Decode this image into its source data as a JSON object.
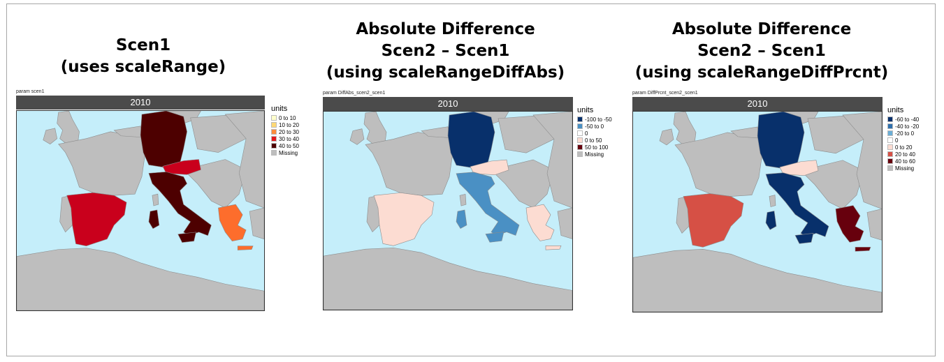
{
  "panels": [
    {
      "id": "scen1",
      "title_lines": [
        "Scen1",
        "(uses scaleRange)"
      ],
      "param_label": "param scen1",
      "year": "2010",
      "legend_title": "units",
      "legend": [
        {
          "label": "0 to 10",
          "color": "#ffffcc"
        },
        {
          "label": "10 to 20",
          "color": "#fed976"
        },
        {
          "label": "20 to 30",
          "color": "#fd8d3c"
        },
        {
          "label": "30 to 40",
          "color": "#e31a1c"
        },
        {
          "label": "40 to 50",
          "color": "#4d0000"
        },
        {
          "label": "Missing",
          "color": "#bebebe"
        }
      ],
      "country_colors": {
        "germany": "#4d0000",
        "austria": "#c9001c",
        "italy": "#4d0000",
        "spain": "#c9001c",
        "greece": "#fd6d2c"
      }
    },
    {
      "id": "diffabs",
      "title_lines": [
        "Absolute Difference",
        "Scen2 – Scen1",
        "(using scaleRangeDiffAbs)"
      ],
      "param_label": "param DiffAbs_scen2_scen1",
      "year": "2010",
      "legend_title": "units",
      "legend": [
        {
          "label": "-100 to -50",
          "color": "#08306b"
        },
        {
          "label": "-50 to 0",
          "color": "#4a90c4"
        },
        {
          "label": "0",
          "color": "#ffffff"
        },
        {
          "label": "0 to 50",
          "color": "#fcdcd2"
        },
        {
          "label": "50 to 100",
          "color": "#67000d"
        },
        {
          "label": "Missing",
          "color": "#bebebe"
        }
      ],
      "country_colors": {
        "germany": "#08306b",
        "austria": "#fcdcd2",
        "italy": "#4a90c4",
        "spain": "#fcdcd2",
        "greece": "#fcdcd2"
      }
    },
    {
      "id": "diffprcnt",
      "title_lines": [
        "Absolute Difference",
        "Scen2 – Scen1",
        "(using scaleRangeDiffPrcnt)"
      ],
      "param_label": "param DiffPrcnt_scen2_scen1",
      "year": "2010",
      "legend_title": "units",
      "legend": [
        {
          "label": "-60 to -40",
          "color": "#08306b"
        },
        {
          "label": "-40 to -20",
          "color": "#2f70ad"
        },
        {
          "label": "-20 to 0",
          "color": "#6aaed6"
        },
        {
          "label": "0",
          "color": "#ffffff"
        },
        {
          "label": "0 to 20",
          "color": "#fcdcd2"
        },
        {
          "label": "20 to 40",
          "color": "#d65045"
        },
        {
          "label": "40 to 60",
          "color": "#67000d"
        },
        {
          "label": "Missing",
          "color": "#bebebe"
        }
      ],
      "country_colors": {
        "germany": "#08306b",
        "austria": "#fcdcd2",
        "italy": "#08306b",
        "spain": "#d65045",
        "greece": "#67000d"
      }
    }
  ]
}
